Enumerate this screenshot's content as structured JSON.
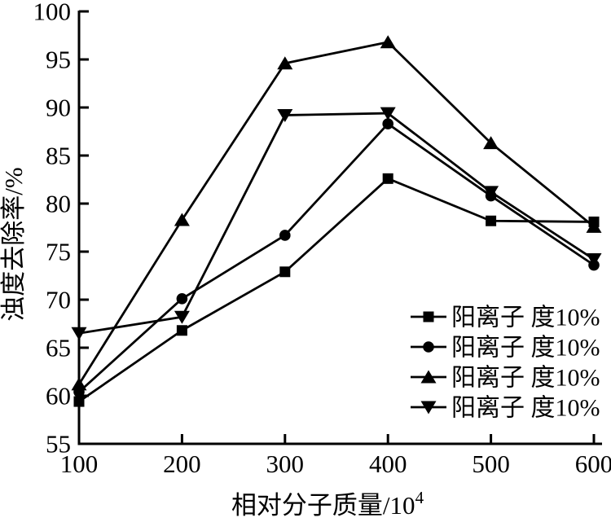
{
  "chart_data": {
    "type": "line",
    "title": "",
    "xlabel": "相对分子质量/10",
    "xlabel_superscript": "4",
    "ylabel": "浊度去除率/%",
    "x": [
      100,
      200,
      300,
      400,
      500,
      600
    ],
    "xticks": [
      100,
      200,
      300,
      400,
      500,
      600
    ],
    "yticks": [
      55,
      60,
      65,
      70,
      75,
      80,
      85,
      90,
      95,
      100
    ],
    "xlim": [
      100,
      600
    ],
    "ylim": [
      55,
      100
    ],
    "grid": false,
    "legend_position": "inside-bottom-right",
    "foreground_color": "#000000",
    "background_color": "#ffffff",
    "series": [
      {
        "name": "阳离子 度10%",
        "marker": "square",
        "values": [
          59.4,
          66.8,
          72.9,
          82.6,
          78.2,
          78.1
        ]
      },
      {
        "name": "阳离子 度10%",
        "marker": "circle",
        "values": [
          60.4,
          70.1,
          76.7,
          88.3,
          80.8,
          73.6
        ]
      },
      {
        "name": "阳离子 度10%",
        "marker": "triangle-up",
        "values": [
          61.2,
          78.3,
          94.6,
          96.8,
          86.3,
          77.6
        ]
      },
      {
        "name": "阳离子 度10%",
        "marker": "triangle-down",
        "values": [
          66.5,
          68.2,
          89.2,
          89.4,
          81.2,
          74.2
        ]
      }
    ]
  }
}
